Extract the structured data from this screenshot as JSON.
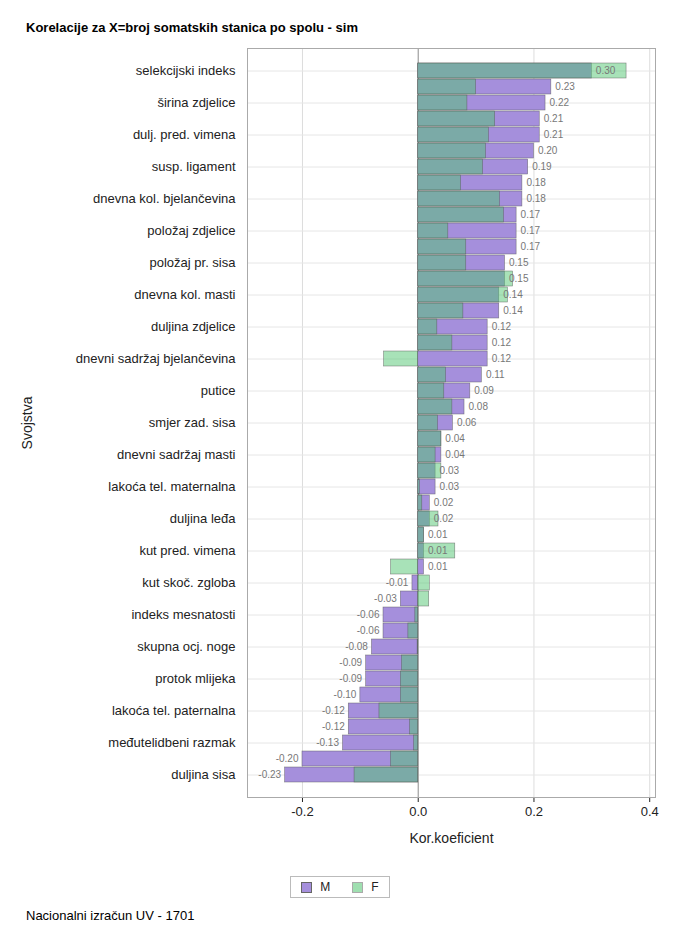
{
  "chart_data": {
    "type": "bar",
    "title": "Korelacije za X=broj somatskih stanica po spolu - sim",
    "x_label": "Kor.koeficient",
    "y_label": "Svojstva",
    "caption": "Nacionalni izračun UV - 1701",
    "orientation": "horizontal",
    "grid": true,
    "data_labels": true,
    "legend": "bottom",
    "xlim": [
      -0.295,
      0.41
    ],
    "xticks": [
      {
        "value": -0.2,
        "label": "-0.2"
      },
      {
        "value": 0,
        "label": "0.0"
      },
      {
        "value": 0.2,
        "label": "0.2"
      },
      {
        "value": 0.4,
        "label": "0.4"
      }
    ],
    "categories": [
      "selekcijski indeks",
      null,
      "širina zdjelice",
      null,
      "dulj. pred. vimena",
      null,
      "susp. ligament",
      null,
      "dnevna kol. bjelančevina",
      null,
      "položaj zdjelice",
      null,
      "položaj pr. sisa",
      null,
      "dnevna kol. masti",
      null,
      "duljina zdjelice",
      null,
      "dnevni sadržaj bjelančevina",
      null,
      "putice",
      null,
      "smjer zad. sisa",
      null,
      "dnevni sadržaj masti",
      null,
      "lakoća tel. maternalna",
      null,
      "duljina leđa",
      null,
      "kut pred. vimena",
      null,
      "kut skoč. zgloba",
      null,
      "indeks mesnatosti",
      null,
      "skupna ocj. noge",
      null,
      "protok mlijeka",
      null,
      "lakoća tel. paternalna",
      null,
      "međutelidbeni razmak",
      null,
      "duljina sisa"
    ],
    "series": [
      {
        "name": "M",
        "color": "#a58fdc",
        "values": [
          0.3,
          0.23,
          0.22,
          0.21,
          0.21,
          0.2,
          0.19,
          0.18,
          0.18,
          0.17,
          0.17,
          0.17,
          0.15,
          0.15,
          0.14,
          0.14,
          0.12,
          0.12,
          0.12,
          0.11,
          0.09,
          0.08,
          0.06,
          0.04,
          0.04,
          0.03,
          0.03,
          0.02,
          0.02,
          0.01,
          0.01,
          0.01,
          -0.01,
          -0.03,
          -0.06,
          -0.06,
          -0.08,
          -0.09,
          -0.09,
          -0.1,
          -0.12,
          -0.12,
          -0.13,
          -0.2,
          -0.23
        ],
        "value_labels": [
          "0.30",
          "0.23",
          "0.22",
          "0.21",
          "0.21",
          "0.20",
          "0.19",
          "0.18",
          "0.18",
          "0.17",
          "0.17",
          "0.17",
          "0.15",
          "0.15",
          "0.14",
          "0.14",
          "0.12",
          "0.12",
          "0.12",
          "0.11",
          "0.09",
          "0.08",
          "0.06",
          "0.04",
          "0.04",
          "0.03",
          "0.03",
          "0.02",
          "0.02",
          "0.01",
          "0.01",
          "0.01",
          "-0.01",
          "-0.03",
          "-0.06",
          "-0.06",
          "-0.08",
          "-0.09",
          "-0.09",
          "-0.10",
          "-0.12",
          "-0.12",
          "-0.13",
          "-0.20",
          "-0.23"
        ]
      },
      {
        "name": "F",
        "color": "#51c571",
        "values": [
          0.36,
          0.1,
          0.085,
          0.133,
          0.122,
          0.117,
          0.112,
          0.074,
          0.141,
          0.148,
          0.052,
          0.083,
          0.083,
          0.164,
          0.155,
          0.078,
          0.033,
          0.059,
          -0.059,
          0.048,
          0.045,
          0.059,
          0.034,
          0.04,
          0.03,
          0.04,
          0.003,
          0.007,
          0.035,
          0.01,
          0.064,
          -0.047,
          0.02,
          0.019,
          -0.005,
          -0.017,
          -0.001,
          -0.028,
          -0.03,
          -0.03,
          -0.067,
          -0.014,
          -0.007,
          -0.047,
          -0.11
        ]
      }
    ]
  }
}
